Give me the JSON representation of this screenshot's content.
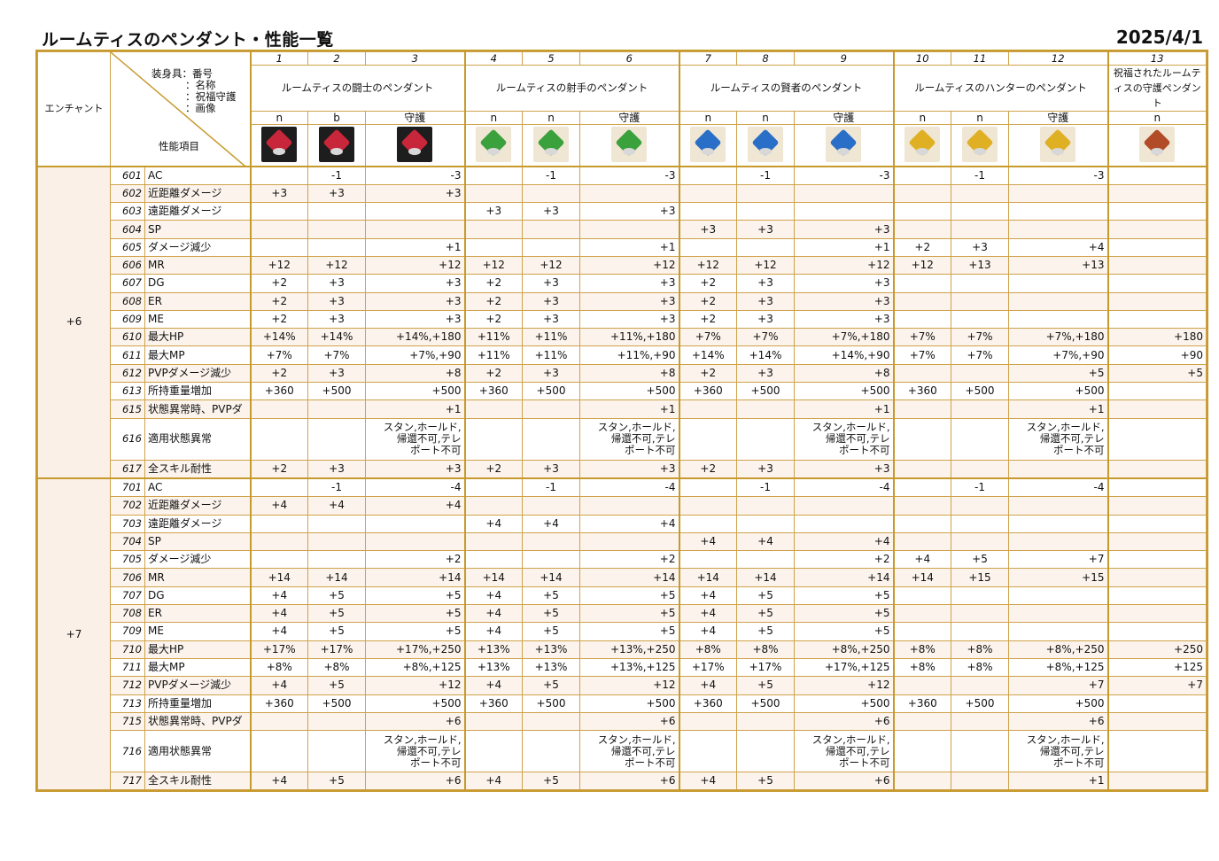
{
  "title": "ルームティスのペンダント・性能一覧",
  "date": "2025/4/1",
  "header": {
    "enchant_label": "エンチャント",
    "legend": [
      "装身具：番号",
      "：名称",
      "：祝福守護",
      "：画像"
    ],
    "perf_label": "性能項目",
    "numbers": [
      "1",
      "2",
      "3",
      "4",
      "5",
      "6",
      "7",
      "8",
      "9",
      "10",
      "11",
      "12",
      "13"
    ],
    "groups": [
      "ルームティスの闘士のペンダント",
      "ルームティスの射手のペンダント",
      "ルームティスの賢者のペンダント",
      "ルームティスのハンターのペンダント",
      "祝福されたルームティスの守護ペンダント"
    ],
    "types": [
      "n",
      "b",
      "守護",
      "n",
      "n",
      "守護",
      "n",
      "n",
      "守護",
      "n",
      "n",
      "守護",
      "n"
    ],
    "icons": [
      "pendant-red-icon",
      "pendant-red-b-icon",
      "pendant-red-guard-icon",
      "pendant-green-icon",
      "pendant-green-b-icon",
      "pendant-green-guard-icon",
      "pendant-blue-icon",
      "pendant-blue-b-icon",
      "pendant-blue-guard-icon",
      "pendant-gold-icon",
      "pendant-gold-b-icon",
      "pendant-gold-guard-icon",
      "pendant-blessed-icon"
    ]
  },
  "sections": [
    {
      "enchant": "+6",
      "rows": [
        {
          "no": "601",
          "label": "AC",
          "v": [
            "",
            "-1",
            "-3",
            "",
            "-1",
            "-3",
            "",
            "-1",
            "-3",
            "",
            "-1",
            "-3",
            ""
          ]
        },
        {
          "no": "602",
          "label": "近距離ダメージ",
          "v": [
            "+3",
            "+3",
            "+3",
            "",
            "",
            "",
            "",
            "",
            "",
            "",
            "",
            "",
            ""
          ]
        },
        {
          "no": "603",
          "label": "遠距離ダメージ",
          "v": [
            "",
            "",
            "",
            "+3",
            "+3",
            "+3",
            "",
            "",
            "",
            "",
            "",
            "",
            ""
          ]
        },
        {
          "no": "604",
          "label": "SP",
          "v": [
            "",
            "",
            "",
            "",
            "",
            "",
            "+3",
            "+3",
            "+3",
            "",
            "",
            "",
            ""
          ]
        },
        {
          "no": "605",
          "label": "ダメージ減少",
          "v": [
            "",
            "",
            "+1",
            "",
            "",
            "+1",
            "",
            "",
            "+1",
            "+2",
            "+3",
            "+4",
            ""
          ]
        },
        {
          "no": "606",
          "label": "MR",
          "v": [
            "+12",
            "+12",
            "+12",
            "+12",
            "+12",
            "+12",
            "+12",
            "+12",
            "+12",
            "+12",
            "+13",
            "+13",
            ""
          ]
        },
        {
          "no": "607",
          "label": "DG",
          "v": [
            "+2",
            "+3",
            "+3",
            "+2",
            "+3",
            "+3",
            "+2",
            "+3",
            "+3",
            "",
            "",
            "",
            ""
          ]
        },
        {
          "no": "608",
          "label": "ER",
          "v": [
            "+2",
            "+3",
            "+3",
            "+2",
            "+3",
            "+3",
            "+2",
            "+3",
            "+3",
            "",
            "",
            "",
            ""
          ]
        },
        {
          "no": "609",
          "label": "ME",
          "v": [
            "+2",
            "+3",
            "+3",
            "+2",
            "+3",
            "+3",
            "+2",
            "+3",
            "+3",
            "",
            "",
            "",
            ""
          ]
        },
        {
          "no": "610",
          "label": "最大HP",
          "v": [
            "+14%",
            "+14%",
            "+14%,+180",
            "+11%",
            "+11%",
            "+11%,+180",
            "+7%",
            "+7%",
            "+7%,+180",
            "+7%",
            "+7%",
            "+7%,+180",
            "+180"
          ]
        },
        {
          "no": "611",
          "label": "最大MP",
          "v": [
            "+7%",
            "+7%",
            "+7%,+90",
            "+11%",
            "+11%",
            "+11%,+90",
            "+14%",
            "+14%",
            "+14%,+90",
            "+7%",
            "+7%",
            "+7%,+90",
            "+90"
          ]
        },
        {
          "no": "612",
          "label": "PVPダメージ減少",
          "v": [
            "+2",
            "+3",
            "+8",
            "+2",
            "+3",
            "+8",
            "+2",
            "+3",
            "+8",
            "",
            "",
            "+5",
            "+5"
          ]
        },
        {
          "no": "613",
          "label": "所持重量増加",
          "v": [
            "+360",
            "+500",
            "+500",
            "+360",
            "+500",
            "+500",
            "+360",
            "+500",
            "+500",
            "+360",
            "+500",
            "+500",
            ""
          ]
        },
        {
          "no": "615",
          "label": "状態異常時、PVPダ",
          "v": [
            "",
            "",
            "+1",
            "",
            "",
            "+1",
            "",
            "",
            "+1",
            "",
            "",
            "+1",
            ""
          ]
        },
        {
          "no": "616",
          "label": "適用状態異常",
          "v": [
            "",
            "",
            "スタン,ホールド,帰還不可,テレポート不可",
            "",
            "",
            "スタン,ホールド,帰還不可,テレポート不可",
            "",
            "",
            "スタン,ホールド,帰還不可,テレポート不可",
            "",
            "",
            "スタン,ホールド,帰還不可,テレポート不可",
            ""
          ]
        },
        {
          "no": "617",
          "label": "全スキル耐性",
          "v": [
            "+2",
            "+3",
            "+3",
            "+2",
            "+3",
            "+3",
            "+2",
            "+3",
            "+3",
            "",
            "",
            "",
            ""
          ]
        }
      ]
    },
    {
      "enchant": "+7",
      "rows": [
        {
          "no": "701",
          "label": "AC",
          "v": [
            "",
            "-1",
            "-4",
            "",
            "-1",
            "-4",
            "",
            "-1",
            "-4",
            "",
            "-1",
            "-4",
            ""
          ]
        },
        {
          "no": "702",
          "label": "近距離ダメージ",
          "v": [
            "+4",
            "+4",
            "+4",
            "",
            "",
            "",
            "",
            "",
            "",
            "",
            "",
            "",
            ""
          ]
        },
        {
          "no": "703",
          "label": "遠距離ダメージ",
          "v": [
            "",
            "",
            "",
            "+4",
            "+4",
            "+4",
            "",
            "",
            "",
            "",
            "",
            "",
            ""
          ]
        },
        {
          "no": "704",
          "label": "SP",
          "v": [
            "",
            "",
            "",
            "",
            "",
            "",
            "+4",
            "+4",
            "+4",
            "",
            "",
            "",
            ""
          ]
        },
        {
          "no": "705",
          "label": "ダメージ減少",
          "v": [
            "",
            "",
            "+2",
            "",
            "",
            "+2",
            "",
            "",
            "+2",
            "+4",
            "+5",
            "+7",
            ""
          ]
        },
        {
          "no": "706",
          "label": "MR",
          "v": [
            "+14",
            "+14",
            "+14",
            "+14",
            "+14",
            "+14",
            "+14",
            "+14",
            "+14",
            "+14",
            "+15",
            "+15",
            ""
          ]
        },
        {
          "no": "707",
          "label": "DG",
          "v": [
            "+4",
            "+5",
            "+5",
            "+4",
            "+5",
            "+5",
            "+4",
            "+5",
            "+5",
            "",
            "",
            "",
            ""
          ]
        },
        {
          "no": "708",
          "label": "ER",
          "v": [
            "+4",
            "+5",
            "+5",
            "+4",
            "+5",
            "+5",
            "+4",
            "+5",
            "+5",
            "",
            "",
            "",
            ""
          ]
        },
        {
          "no": "709",
          "label": "ME",
          "v": [
            "+4",
            "+5",
            "+5",
            "+4",
            "+5",
            "+5",
            "+4",
            "+5",
            "+5",
            "",
            "",
            "",
            ""
          ]
        },
        {
          "no": "710",
          "label": "最大HP",
          "v": [
            "+17%",
            "+17%",
            "+17%,+250",
            "+13%",
            "+13%",
            "+13%,+250",
            "+8%",
            "+8%",
            "+8%,+250",
            "+8%",
            "+8%",
            "+8%,+250",
            "+250"
          ]
        },
        {
          "no": "711",
          "label": "最大MP",
          "v": [
            "+8%",
            "+8%",
            "+8%,+125",
            "+13%",
            "+13%",
            "+13%,+125",
            "+17%",
            "+17%",
            "+17%,+125",
            "+8%",
            "+8%",
            "+8%,+125",
            "+125"
          ]
        },
        {
          "no": "712",
          "label": "PVPダメージ減少",
          "v": [
            "+4",
            "+5",
            "+12",
            "+4",
            "+5",
            "+12",
            "+4",
            "+5",
            "+12",
            "",
            "",
            "+7",
            "+7"
          ]
        },
        {
          "no": "713",
          "label": "所持重量増加",
          "v": [
            "+360",
            "+500",
            "+500",
            "+360",
            "+500",
            "+500",
            "+360",
            "+500",
            "+500",
            "+360",
            "+500",
            "+500",
            ""
          ]
        },
        {
          "no": "715",
          "label": "状態異常時、PVPダ",
          "v": [
            "",
            "",
            "+6",
            "",
            "",
            "+6",
            "",
            "",
            "+6",
            "",
            "",
            "+6",
            ""
          ]
        },
        {
          "no": "716",
          "label": "適用状態異常",
          "v": [
            "",
            "",
            "スタン,ホールド,帰還不可,テレポート不可",
            "",
            "",
            "スタン,ホールド,帰還不可,テレポート不可",
            "",
            "",
            "スタン,ホールド,帰還不可,テレポート不可",
            "",
            "",
            "スタン,ホールド,帰還不可,テレポート不可",
            ""
          ]
        },
        {
          "no": "717",
          "label": "全スキル耐性",
          "v": [
            "+4",
            "+5",
            "+6",
            "+4",
            "+5",
            "+6",
            "+4",
            "+5",
            "+6",
            "",
            "",
            "+1",
            ""
          ]
        }
      ]
    }
  ]
}
